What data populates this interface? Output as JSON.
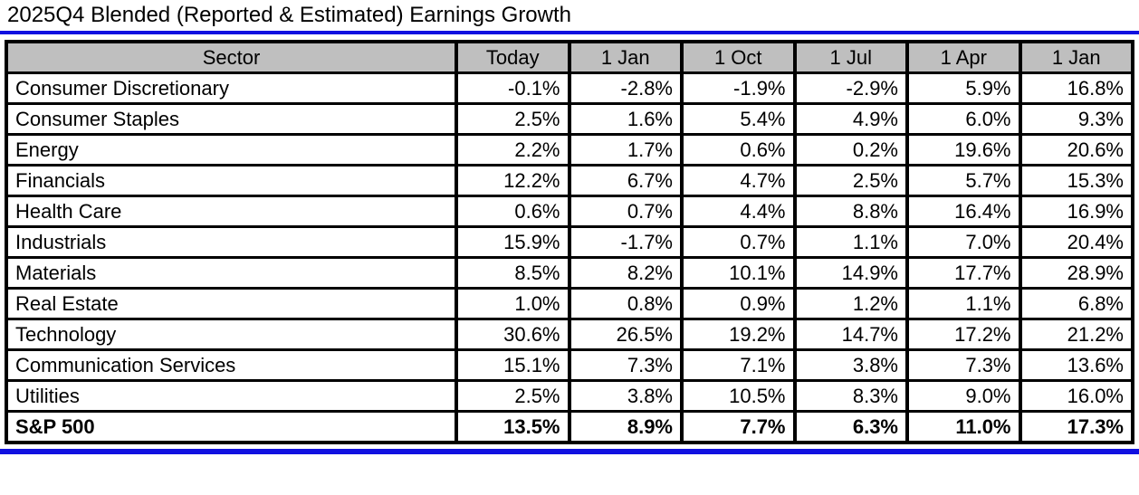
{
  "title": "2025Q4 Blended (Reported & Estimated) Earnings Growth",
  "colors": {
    "accent_blue": "#1010e0",
    "header_bg": "#bfbfbf",
    "border": "#000000",
    "text": "#000000"
  },
  "table": {
    "columns": [
      "Sector",
      "Today",
      "1 Jan",
      "1 Oct",
      "1 Jul",
      "1 Apr",
      "1 Jan"
    ],
    "rows": [
      {
        "sector": "Consumer Discretionary",
        "values": [
          "-0.1%",
          "-2.8%",
          "-1.9%",
          "-2.9%",
          "5.9%",
          "16.8%"
        ],
        "bold": false
      },
      {
        "sector": "Consumer Staples",
        "values": [
          "2.5%",
          "1.6%",
          "5.4%",
          "4.9%",
          "6.0%",
          "9.3%"
        ],
        "bold": false
      },
      {
        "sector": "Energy",
        "values": [
          "2.2%",
          "1.7%",
          "0.6%",
          "0.2%",
          "19.6%",
          "20.6%"
        ],
        "bold": false
      },
      {
        "sector": "Financials",
        "values": [
          "12.2%",
          "6.7%",
          "4.7%",
          "2.5%",
          "5.7%",
          "15.3%"
        ],
        "bold": false
      },
      {
        "sector": "Health Care",
        "values": [
          "0.6%",
          "0.7%",
          "4.4%",
          "8.8%",
          "16.4%",
          "16.9%"
        ],
        "bold": false
      },
      {
        "sector": "Industrials",
        "values": [
          "15.9%",
          "-1.7%",
          "0.7%",
          "1.1%",
          "7.0%",
          "20.4%"
        ],
        "bold": false
      },
      {
        "sector": "Materials",
        "values": [
          "8.5%",
          "8.2%",
          "10.1%",
          "14.9%",
          "17.7%",
          "28.9%"
        ],
        "bold": false
      },
      {
        "sector": "Real Estate",
        "values": [
          "1.0%",
          "0.8%",
          "0.9%",
          "1.2%",
          "1.1%",
          "6.8%"
        ],
        "bold": false
      },
      {
        "sector": "Technology",
        "values": [
          "30.6%",
          "26.5%",
          "19.2%",
          "14.7%",
          "17.2%",
          "21.2%"
        ],
        "bold": false
      },
      {
        "sector": "Communication Services",
        "values": [
          "15.1%",
          "7.3%",
          "7.1%",
          "3.8%",
          "7.3%",
          "13.6%"
        ],
        "bold": false
      },
      {
        "sector": "Utilities",
        "values": [
          "2.5%",
          "3.8%",
          "10.5%",
          "8.3%",
          "9.0%",
          "16.0%"
        ],
        "bold": false
      },
      {
        "sector": "S&P 500",
        "values": [
          "13.5%",
          "8.9%",
          "7.7%",
          "6.3%",
          "11.0%",
          "17.3%"
        ],
        "bold": true
      }
    ]
  },
  "chart_data": {
    "type": "table",
    "title": "2025Q4 Blended (Reported & Estimated) Earnings Growth",
    "units": "percent",
    "columns": [
      "Sector",
      "Today",
      "1 Jan",
      "1 Oct",
      "1 Jul",
      "1 Apr",
      "1 Jan"
    ],
    "rows": [
      [
        "Consumer Discretionary",
        -0.1,
        -2.8,
        -1.9,
        -2.9,
        5.9,
        16.8
      ],
      [
        "Consumer Staples",
        2.5,
        1.6,
        5.4,
        4.9,
        6.0,
        9.3
      ],
      [
        "Energy",
        2.2,
        1.7,
        0.6,
        0.2,
        19.6,
        20.6
      ],
      [
        "Financials",
        12.2,
        6.7,
        4.7,
        2.5,
        5.7,
        15.3
      ],
      [
        "Health Care",
        0.6,
        0.7,
        4.4,
        8.8,
        16.4,
        16.9
      ],
      [
        "Industrials",
        15.9,
        -1.7,
        0.7,
        1.1,
        7.0,
        20.4
      ],
      [
        "Materials",
        8.5,
        8.2,
        10.1,
        14.9,
        17.7,
        28.9
      ],
      [
        "Real Estate",
        1.0,
        0.8,
        0.9,
        1.2,
        1.1,
        6.8
      ],
      [
        "Technology",
        30.6,
        26.5,
        19.2,
        14.7,
        17.2,
        21.2
      ],
      [
        "Communication Services",
        15.1,
        7.3,
        7.1,
        3.8,
        7.3,
        13.6
      ],
      [
        "Utilities",
        2.5,
        3.8,
        10.5,
        8.3,
        9.0,
        16.0
      ],
      [
        "S&P 500",
        13.5,
        8.9,
        7.7,
        6.3,
        11.0,
        17.3
      ]
    ]
  }
}
